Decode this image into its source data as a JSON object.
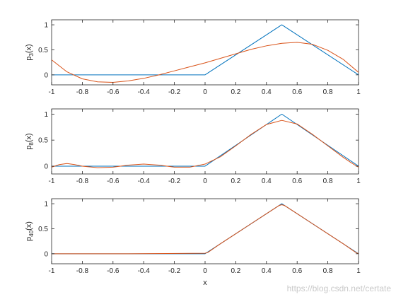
{
  "chart_data": [
    {
      "type": "line",
      "ylabel": {
        "main": "p",
        "sub": "3",
        "suffix": "(x)"
      },
      "xlabel": "",
      "xlim": [
        -1,
        1
      ],
      "ylim": [
        -0.2,
        1.1
      ],
      "xticks": [
        -1,
        -0.8,
        -0.6,
        -0.4,
        -0.2,
        0,
        0.2,
        0.4,
        0.6,
        0.8,
        1
      ],
      "xtick_labels": [
        "-1",
        "-0.8",
        "-0.6",
        "-0.4",
        "-0.2",
        "0",
        "0.2",
        "0.4",
        "0.6",
        "0.8",
        "1"
      ],
      "yticks": [
        0,
        0.5,
        1
      ],
      "ytick_labels": [
        "0",
        "0.5",
        "1"
      ],
      "series": [
        {
          "color": "#0072BD",
          "x": [
            -1,
            0,
            0.5,
            1
          ],
          "y": [
            0,
            0,
            1,
            0
          ]
        },
        {
          "color": "#D95319",
          "x": [
            -1,
            -0.9,
            -0.8,
            -0.7,
            -0.6,
            -0.5,
            -0.4,
            -0.3,
            -0.2,
            -0.1,
            0,
            0.1,
            0.2,
            0.3,
            0.4,
            0.5,
            0.6,
            0.7,
            0.8,
            0.9,
            1
          ],
          "y": [
            0.3,
            0.06,
            -0.08,
            -0.14,
            -0.15,
            -0.12,
            -0.07,
            0.0,
            0.08,
            0.16,
            0.24,
            0.33,
            0.42,
            0.51,
            0.58,
            0.63,
            0.65,
            0.61,
            0.49,
            0.31,
            0.05
          ]
        }
      ]
    },
    {
      "type": "line",
      "ylabel": {
        "main": "p",
        "sub": "8",
        "suffix": "(x)"
      },
      "xlabel": "",
      "xlim": [
        -1,
        1
      ],
      "ylim": [
        -0.15,
        1.1
      ],
      "xticks": [
        -1,
        -0.8,
        -0.6,
        -0.4,
        -0.2,
        0,
        0.2,
        0.4,
        0.6,
        0.8,
        1
      ],
      "xtick_labels": [
        "-1",
        "-0.8",
        "-0.6",
        "-0.4",
        "-0.2",
        "0",
        "0.2",
        "0.4",
        "0.6",
        "0.8",
        "1"
      ],
      "yticks": [
        0,
        0.5,
        1
      ],
      "ytick_labels": [
        "0",
        "0.5",
        "1"
      ],
      "series": [
        {
          "color": "#0072BD",
          "x": [
            -1,
            0,
            0.5,
            1
          ],
          "y": [
            0,
            0,
            1,
            0
          ]
        },
        {
          "color": "#D95319",
          "x": [
            -1,
            -0.95,
            -0.9,
            -0.85,
            -0.8,
            -0.7,
            -0.6,
            -0.5,
            -0.4,
            -0.3,
            -0.2,
            -0.1,
            0,
            0.1,
            0.2,
            0.3,
            0.4,
            0.5,
            0.6,
            0.7,
            0.8,
            0.9,
            0.95,
            1
          ],
          "y": [
            -0.02,
            0.03,
            0.05,
            0.03,
            0.0,
            -0.03,
            -0.02,
            0.02,
            0.04,
            0.02,
            -0.02,
            -0.02,
            0.04,
            0.18,
            0.39,
            0.61,
            0.8,
            0.88,
            0.81,
            0.61,
            0.39,
            0.17,
            0.07,
            -0.02
          ]
        }
      ]
    },
    {
      "type": "line",
      "ylabel": {
        "main": "p",
        "sub": "40",
        "suffix": "(x)"
      },
      "xlabel": "x",
      "xlim": [
        -1,
        1
      ],
      "ylim": [
        -0.2,
        1.1
      ],
      "xticks": [
        -1,
        -0.8,
        -0.6,
        -0.4,
        -0.2,
        0,
        0.2,
        0.4,
        0.6,
        0.8,
        1
      ],
      "xtick_labels": [
        "-1",
        "-0.8",
        "-0.6",
        "-0.4",
        "-0.2",
        "0",
        "0.2",
        "0.4",
        "0.6",
        "0.8",
        "1"
      ],
      "yticks": [
        0,
        0.5,
        1
      ],
      "ytick_labels": [
        "0",
        "0.5",
        "1"
      ],
      "series": [
        {
          "color": "#0072BD",
          "x": [
            -1,
            0,
            0.5,
            1
          ],
          "y": [
            0,
            0,
            1,
            0
          ]
        },
        {
          "color": "#D95319",
          "x": [
            -1,
            -0.5,
            0,
            0.02,
            0.1,
            0.2,
            0.3,
            0.4,
            0.48,
            0.5,
            0.52,
            0.6,
            0.7,
            0.8,
            0.9,
            0.98,
            1
          ],
          "y": [
            0,
            0.0,
            0.01,
            0.03,
            0.2,
            0.4,
            0.6,
            0.8,
            0.96,
            0.98,
            0.96,
            0.8,
            0.6,
            0.4,
            0.2,
            0.03,
            0.0
          ]
        }
      ]
    }
  ],
  "watermark": "https://blog.csdn.net/certate"
}
